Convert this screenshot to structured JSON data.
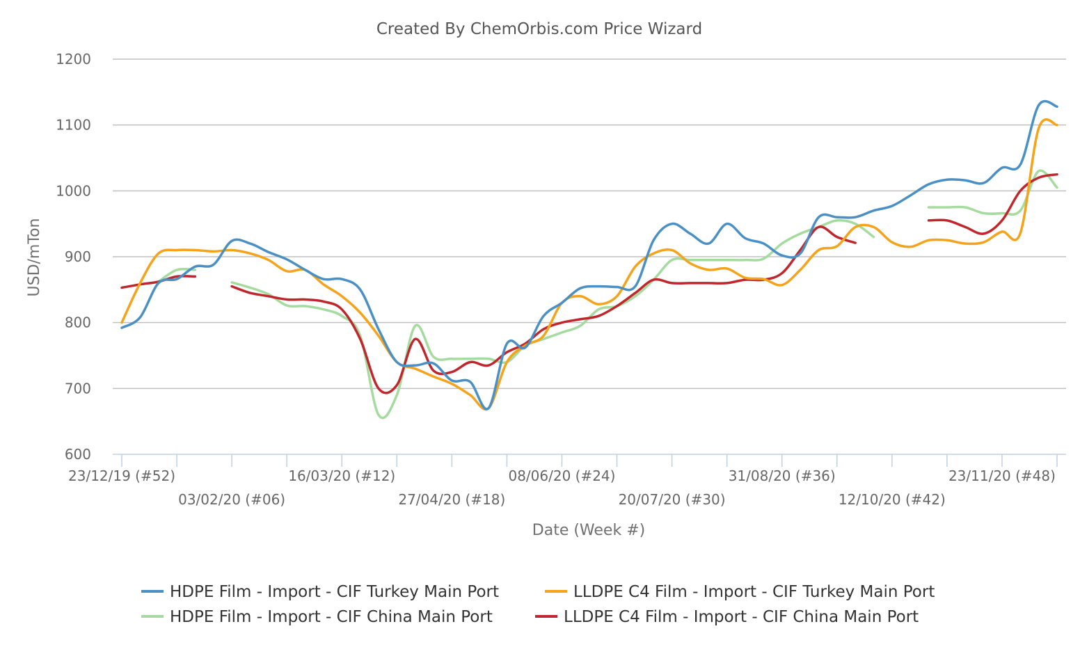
{
  "chart_data": {
    "type": "line",
    "title": "Created By ChemOrbis.com Price Wizard",
    "xlabel": "Date (Week #)",
    "ylabel": "USD/mTon",
    "ylim": [
      600,
      1200
    ],
    "yticks": [
      600,
      700,
      800,
      900,
      1000,
      1100,
      1200
    ],
    "grid": true,
    "legend_position": "bottom",
    "x_start_week": 52,
    "x_end_week": 103,
    "xticks": [
      {
        "week": 52,
        "label": "23/12/19 (#52)",
        "row": 0
      },
      {
        "week": 58,
        "label": "03/02/20 (#06)",
        "row": 1
      },
      {
        "week": 64,
        "label": "16/03/20 (#12)",
        "row": 0
      },
      {
        "week": 70,
        "label": "27/04/20 (#18)",
        "row": 1
      },
      {
        "week": 76,
        "label": "08/06/20 (#24)",
        "row": 0
      },
      {
        "week": 82,
        "label": "20/07/20 (#30)",
        "row": 1
      },
      {
        "week": 88,
        "label": "31/08/20 (#36)",
        "row": 0
      },
      {
        "week": 94,
        "label": "12/10/20 (#42)",
        "row": 1
      },
      {
        "week": 100,
        "label": "23/11/20 (#48)",
        "row": 0
      }
    ],
    "minor_tick_weeks": [
      52,
      55,
      58,
      61,
      64,
      67,
      70,
      73,
      76,
      79,
      82,
      85,
      88,
      91,
      94,
      97,
      100,
      103
    ],
    "series": [
      {
        "name": "HDPE Film - Import - CIF Turkey Main Port",
        "color": "#4a90c4",
        "segments": [
          [
            [
              52,
              792
            ],
            [
              53,
              808
            ],
            [
              54,
              860
            ],
            [
              55,
              866
            ],
            [
              56,
              885
            ],
            [
              57,
              888
            ],
            [
              58,
              924
            ],
            [
              59,
              920
            ],
            [
              60,
              907
            ],
            [
              61,
              896
            ],
            [
              62,
              880
            ],
            [
              63,
              866
            ],
            [
              64,
              866
            ],
            [
              65,
              850
            ],
            [
              66,
              790
            ],
            [
              67,
              740
            ],
            [
              68,
              735
            ],
            [
              69,
              738
            ],
            [
              70,
              712
            ],
            [
              71,
              710
            ],
            [
              72,
              670
            ],
            [
              73,
              768
            ],
            [
              74,
              762
            ],
            [
              75,
              810
            ],
            [
              76,
              830
            ],
            [
              77,
              852
            ],
            [
              78,
              855
            ],
            [
              79,
              854
            ],
            [
              80,
              855
            ],
            [
              81,
              925
            ],
            [
              82,
              950
            ],
            [
              83,
              935
            ],
            [
              84,
              920
            ],
            [
              85,
              950
            ],
            [
              86,
              928
            ],
            [
              87,
              920
            ],
            [
              88,
              902
            ],
            [
              89,
              905
            ],
            [
              90,
              960
            ],
            [
              91,
              960
            ],
            [
              92,
              960
            ],
            [
              93,
              970
            ],
            [
              94,
              977
            ],
            [
              95,
              993
            ],
            [
              96,
              1010
            ],
            [
              97,
              1017
            ],
            [
              98,
              1016
            ],
            [
              99,
              1012
            ],
            [
              100,
              1035
            ],
            [
              101,
              1040
            ],
            [
              102,
              1130
            ],
            [
              103,
              1128
            ]
          ]
        ]
      },
      {
        "name": "LLDPE C4 Film - Import - CIF Turkey Main Port",
        "color": "#f5a31a",
        "segments": [
          [
            [
              52,
              800
            ],
            [
              53,
              860
            ],
            [
              54,
              905
            ],
            [
              55,
              910
            ],
            [
              56,
              910
            ],
            [
              57,
              908
            ],
            [
              58,
              910
            ],
            [
              59,
              905
            ],
            [
              60,
              895
            ],
            [
              61,
              878
            ],
            [
              62,
              880
            ],
            [
              63,
              858
            ],
            [
              64,
              840
            ],
            [
              65,
              815
            ],
            [
              66,
              780
            ],
            [
              67,
              740
            ],
            [
              68,
              730
            ],
            [
              69,
              718
            ],
            [
              70,
              707
            ],
            [
              71,
              690
            ],
            [
              72,
              670
            ],
            [
              73,
              740
            ],
            [
              74,
              765
            ],
            [
              75,
              780
            ],
            [
              76,
              830
            ],
            [
              77,
              840
            ],
            [
              78,
              828
            ],
            [
              79,
              840
            ],
            [
              80,
              885
            ],
            [
              81,
              905
            ],
            [
              82,
              910
            ],
            [
              83,
              890
            ],
            [
              84,
              880
            ],
            [
              85,
              882
            ],
            [
              86,
              868
            ],
            [
              87,
              866
            ],
            [
              88,
              857
            ],
            [
              89,
              880
            ],
            [
              90,
              910
            ],
            [
              91,
              916
            ],
            [
              92,
              945
            ],
            [
              93,
              945
            ],
            [
              94,
              922
            ],
            [
              95,
              915
            ],
            [
              96,
              925
            ],
            [
              97,
              925
            ],
            [
              98,
              920
            ],
            [
              99,
              922
            ],
            [
              100,
              938
            ],
            [
              101,
              936
            ],
            [
              102,
              1095
            ],
            [
              103,
              1100
            ]
          ]
        ]
      },
      {
        "name": "HDPE Film - Import - CIF China Main Port",
        "color": "#a6dba0",
        "segments": [
          [
            [
              54,
              862
            ],
            [
              55,
              880
            ],
            [
              56,
              880
            ]
          ],
          [
            [
              58,
              861
            ],
            [
              59,
              853
            ],
            [
              60,
              843
            ],
            [
              61,
              826
            ],
            [
              62,
              825
            ],
            [
              63,
              820
            ],
            [
              64,
              810
            ],
            [
              65,
              780
            ],
            [
              66,
              660
            ],
            [
              67,
              690
            ],
            [
              68,
              795
            ],
            [
              69,
              748
            ],
            [
              70,
              745
            ],
            [
              71,
              745
            ],
            [
              72,
              745
            ],
            [
              73,
              740
            ],
            [
              74,
              765
            ],
            [
              75,
              775
            ],
            [
              76,
              785
            ],
            [
              77,
              795
            ],
            [
              78,
              820
            ],
            [
              79,
              825
            ],
            [
              80,
              840
            ],
            [
              81,
              865
            ],
            [
              82,
              895
            ],
            [
              83,
              895
            ],
            [
              84,
              895
            ],
            [
              85,
              895
            ],
            [
              86,
              895
            ],
            [
              87,
              897
            ],
            [
              88,
              920
            ],
            [
              89,
              935
            ],
            [
              90,
              945
            ],
            [
              91,
              955
            ],
            [
              92,
              950
            ],
            [
              93,
              930
            ]
          ],
          [
            [
              96,
              975
            ],
            [
              97,
              975
            ],
            [
              98,
              975
            ],
            [
              99,
              966
            ],
            [
              100,
              966
            ],
            [
              101,
              970
            ],
            [
              102,
              1030
            ],
            [
              103,
              1005
            ]
          ]
        ]
      },
      {
        "name": "LLDPE C4 Film - Import - CIF China Main Port",
        "color": "#c0272d",
        "segments": [
          [
            [
              52,
              853
            ],
            [
              53,
              858
            ],
            [
              54,
              862
            ],
            [
              55,
              870
            ],
            [
              56,
              870
            ]
          ],
          [
            [
              58,
              855
            ],
            [
              59,
              845
            ],
            [
              60,
              840
            ],
            [
              61,
              835
            ],
            [
              62,
              835
            ],
            [
              63,
              832
            ],
            [
              64,
              820
            ],
            [
              65,
              775
            ],
            [
              66,
              700
            ],
            [
              67,
              705
            ],
            [
              68,
              775
            ],
            [
              69,
              727
            ],
            [
              70,
              725
            ],
            [
              71,
              740
            ],
            [
              72,
              735
            ],
            [
              73,
              755
            ],
            [
              74,
              768
            ],
            [
              75,
              790
            ],
            [
              76,
              800
            ],
            [
              77,
              805
            ],
            [
              78,
              810
            ],
            [
              79,
              825
            ],
            [
              80,
              845
            ],
            [
              81,
              865
            ],
            [
              82,
              860
            ],
            [
              83,
              860
            ],
            [
              84,
              860
            ],
            [
              85,
              860
            ],
            [
              86,
              865
            ],
            [
              87,
              865
            ],
            [
              88,
              875
            ],
            [
              89,
              910
            ],
            [
              90,
              945
            ],
            [
              91,
              930
            ],
            [
              92,
              921
            ]
          ],
          [
            [
              96,
              955
            ],
            [
              97,
              955
            ],
            [
              98,
              945
            ],
            [
              99,
              935
            ],
            [
              100,
              955
            ],
            [
              101,
              1000
            ],
            [
              102,
              1020
            ],
            [
              103,
              1025
            ]
          ]
        ]
      }
    ]
  }
}
